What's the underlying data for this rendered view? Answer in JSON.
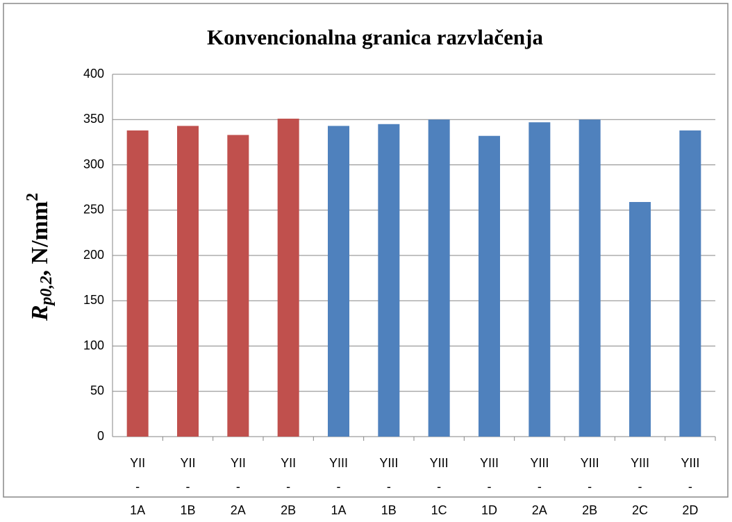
{
  "chart_data": {
    "type": "bar",
    "title": "Konvencionalna granica razvlačenja",
    "y_label": {
      "symbol": "R",
      "subscript": "p0,2",
      "text": ", N/mm",
      "superscript": "2"
    },
    "categories": [
      "YII - 1A",
      "YII - 1B",
      "YII - 2A",
      "YII - 2B",
      "YIII - 1A",
      "YIII - 1B",
      "YIII - 1C",
      "YIII - 1D",
      "YIII - 2A",
      "YIII - 2B",
      "YIII - 2C",
      "YIII - 2D"
    ],
    "values": [
      338,
      343,
      333,
      351,
      343,
      345,
      350,
      332,
      347,
      350,
      259,
      338
    ],
    "colors": [
      "#c0504d",
      "#c0504d",
      "#c0504d",
      "#c0504d",
      "#4f81bd",
      "#4f81bd",
      "#4f81bd",
      "#4f81bd",
      "#4f81bd",
      "#4f81bd",
      "#4f81bd",
      "#4f81bd"
    ],
    "ylim": [
      0,
      400
    ],
    "yticks": [
      0,
      50,
      100,
      150,
      200,
      250,
      300,
      350,
      400
    ],
    "grid": true
  }
}
